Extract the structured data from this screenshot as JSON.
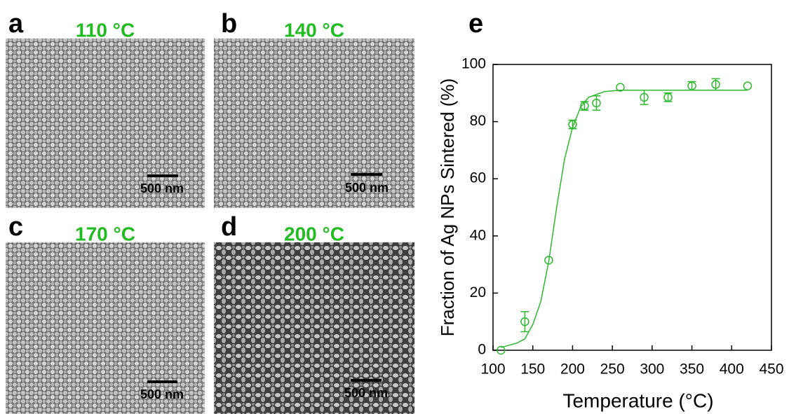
{
  "panels": [
    {
      "label": "a",
      "temperature": "110 °C",
      "scale_bar": "500 nm"
    },
    {
      "label": "b",
      "temperature": "140 °C",
      "scale_bar": "500 nm"
    },
    {
      "label": "c",
      "temperature": "170 °C",
      "scale_bar": "500 nm"
    },
    {
      "label": "d",
      "temperature": "200 °C",
      "scale_bar": "500 nm"
    }
  ],
  "chart_data": {
    "type": "scatter",
    "panel_label": "e",
    "xlabel": "Temperature (°C)",
    "ylabel": "Fraction of Ag NPs Sintered (%)",
    "xlim": [
      100,
      450
    ],
    "ylim": [
      0,
      100
    ],
    "xticks": [
      100,
      150,
      200,
      250,
      300,
      350,
      400,
      450
    ],
    "yticks": [
      0,
      20,
      40,
      60,
      80,
      100
    ],
    "series": [
      {
        "type": "scatter",
        "color": "#2db92d",
        "x": [
          110,
          140,
          170,
          200,
          215,
          230,
          260,
          290,
          320,
          350,
          380,
          420
        ],
        "values": [
          0,
          10,
          31.5,
          79,
          85.5,
          86.5,
          92,
          88.5,
          88.5,
          92.5,
          93,
          92.5
        ],
        "errors": [
          0,
          3.5,
          0,
          1.5,
          1.5,
          2.5,
          0,
          2.5,
          1.5,
          1.5,
          2,
          0
        ]
      },
      {
        "type": "line",
        "color": "#2db92d",
        "x": [
          110,
          130,
          140,
          150,
          160,
          170,
          180,
          190,
          200,
          210,
          220,
          240,
          260,
          300,
          350,
          420
        ],
        "values": [
          1,
          2.5,
          4,
          9,
          17,
          31,
          50,
          67,
          78,
          85,
          88.5,
          90.5,
          91,
          91,
          91,
          91
        ]
      }
    ]
  }
}
